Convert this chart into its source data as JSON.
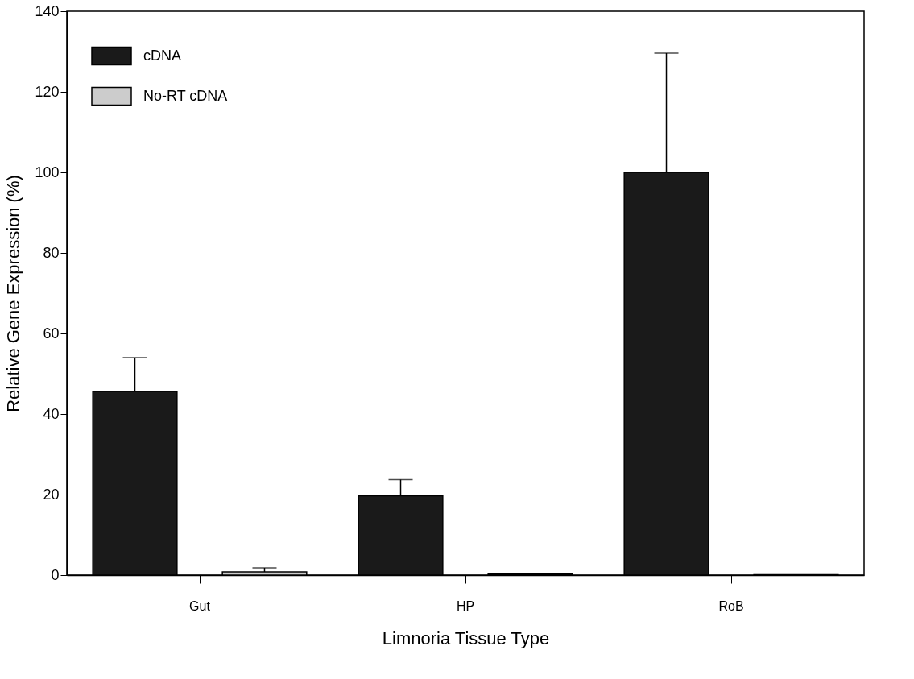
{
  "chart_data": {
    "type": "bar",
    "xlabel": "Limnoria Tissue Type",
    "ylabel": "Relative Gene Expression (%)",
    "categories": [
      "Gut",
      "HP",
      "RoB"
    ],
    "series": [
      {
        "name": "cDNA",
        "color": "#1a1a1a",
        "values": [
          45.6,
          19.7,
          100
        ],
        "errors": [
          8.4,
          4.0,
          29.6
        ]
      },
      {
        "name": "No-RT cDNA",
        "color": "#cccccc",
        "values": [
          0.8,
          0.3,
          0.1
        ],
        "errors": [
          1.0,
          0.1,
          null
        ]
      }
    ],
    "ylim": [
      0,
      140
    ],
    "yticks": [
      0,
      20,
      40,
      60,
      80,
      100,
      120,
      140
    ],
    "grid": false,
    "legend": "top left"
  }
}
